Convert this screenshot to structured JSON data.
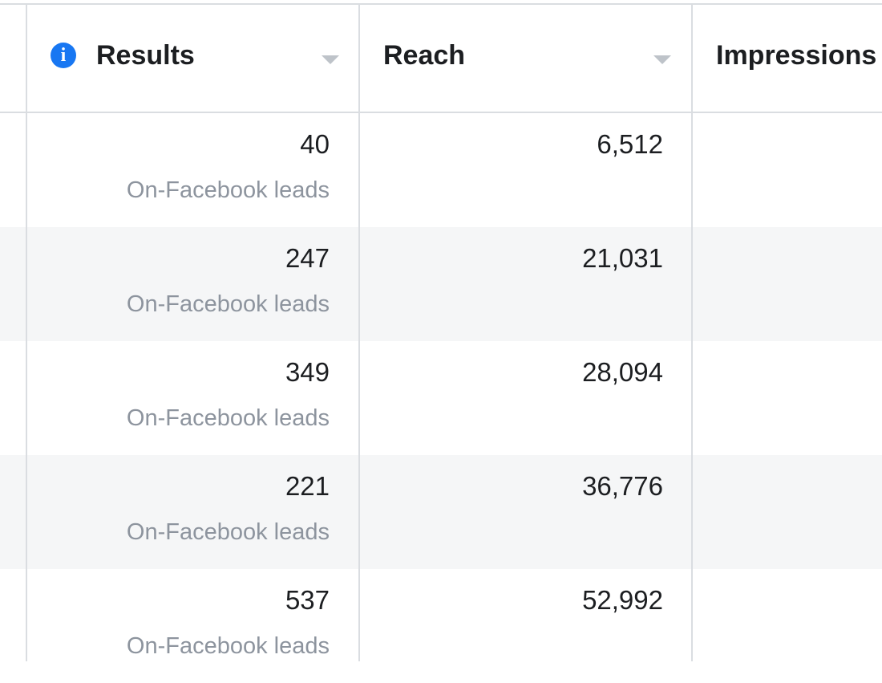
{
  "table": {
    "columns": [
      "Results",
      "Reach",
      "Impressions"
    ],
    "rows": [
      {
        "results": "40",
        "result_type": "On-Facebook leads",
        "reach": "6,512"
      },
      {
        "results": "247",
        "result_type": "On-Facebook leads",
        "reach": "21,031"
      },
      {
        "results": "349",
        "result_type": "On-Facebook leads",
        "reach": "28,094"
      },
      {
        "results": "221",
        "result_type": "On-Facebook leads",
        "reach": "36,776"
      },
      {
        "results": "537",
        "result_type": "On-Facebook leads",
        "reach": "52,992"
      }
    ]
  }
}
